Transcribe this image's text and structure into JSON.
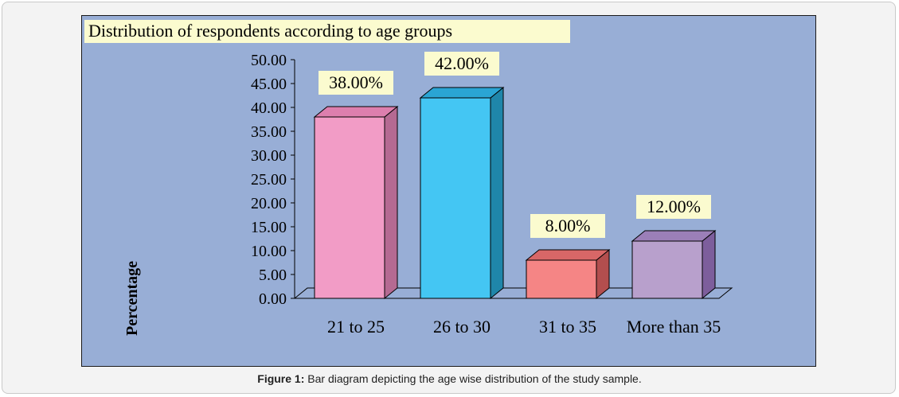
{
  "chart_data": {
    "type": "bar",
    "title": "Distribution of respondents according to age groups",
    "ylabel": "Percentage",
    "xlabel": "",
    "categories": [
      "21 to 25",
      "26 to 30",
      "31 to 35",
      "More than 35"
    ],
    "values": [
      38,
      42,
      8,
      12
    ],
    "value_labels": [
      "38.00%",
      "42.00%",
      "8.00%",
      "12.00%"
    ],
    "ylim": [
      0,
      50
    ],
    "yticks": [
      "0.00",
      "5.00",
      "10.00",
      "15.00",
      "20.00",
      "25.00",
      "30.00",
      "35.00",
      "40.00",
      "45.00",
      "50.00"
    ],
    "bar_colors": [
      "#f29cc6",
      "#44c6f3",
      "#f58585",
      "#b8a0cc"
    ],
    "bar_side_colors": [
      "#b56a92",
      "#1f86aa",
      "#b34e4e",
      "#7d5e9c"
    ],
    "bar_top_colors": [
      "#dd7fae",
      "#2aa5d4",
      "#d86767",
      "#9b7fb8"
    ],
    "background_color": "#98aed6",
    "label_bg_color": "#fbfbcf",
    "grid": false
  },
  "caption": {
    "label": "Figure 1:",
    "text": " Bar diagram depicting the age wise distribution of the study sample."
  }
}
